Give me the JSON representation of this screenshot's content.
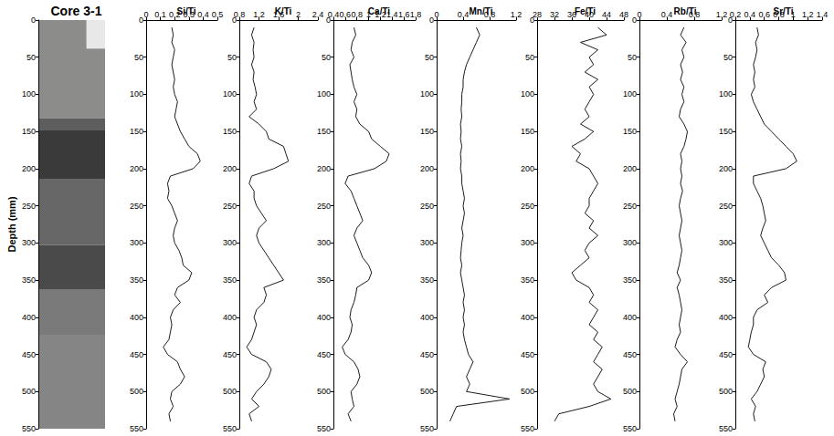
{
  "chart_data": [
    {
      "type": "core_image",
      "title": "Core 3-1",
      "y_label": "Depth (mm)",
      "ylim": [
        0,
        550
      ],
      "yticks": [
        0,
        50,
        100,
        150,
        200,
        250,
        300,
        350,
        400,
        450,
        500,
        550
      ],
      "grid": false
    },
    {
      "type": "line",
      "title": "Si/Ti",
      "color": "#000000",
      "grid": false,
      "xlim": [
        0,
        0.5
      ],
      "xticks": [
        0,
        0.1,
        0.2,
        0.3,
        0.4,
        0.5
      ],
      "ylim": [
        0,
        550
      ],
      "yticks": [
        0,
        50,
        100,
        150,
        200,
        250,
        300,
        350,
        400,
        450,
        500,
        550
      ],
      "y": [
        10,
        20,
        30,
        40,
        50,
        60,
        70,
        80,
        90,
        100,
        110,
        120,
        130,
        140,
        150,
        160,
        170,
        180,
        190,
        200,
        210,
        220,
        230,
        240,
        250,
        260,
        270,
        280,
        290,
        300,
        310,
        320,
        330,
        340,
        350,
        360,
        370,
        380,
        390,
        400,
        410,
        420,
        430,
        440,
        450,
        460,
        470,
        480,
        490,
        500,
        510,
        520,
        530,
        540
      ],
      "x": [
        0.18,
        0.19,
        0.18,
        0.2,
        0.19,
        0.18,
        0.19,
        0.2,
        0.19,
        0.2,
        0.22,
        0.21,
        0.2,
        0.22,
        0.24,
        0.27,
        0.3,
        0.36,
        0.38,
        0.33,
        0.17,
        0.15,
        0.16,
        0.15,
        0.18,
        0.2,
        0.22,
        0.2,
        0.19,
        0.2,
        0.23,
        0.25,
        0.26,
        0.32,
        0.3,
        0.22,
        0.2,
        0.24,
        0.19,
        0.17,
        0.18,
        0.17,
        0.16,
        0.12,
        0.15,
        0.22,
        0.24,
        0.27,
        0.24,
        0.18,
        0.17,
        0.19,
        0.16,
        0.17
      ]
    },
    {
      "type": "line",
      "title": "K/Ti",
      "color": "#000000",
      "grid": false,
      "xlim": [
        0.8,
        2.4
      ],
      "xticks": [
        0.8,
        1.2,
        1.6,
        2,
        2.4
      ],
      "ylim": [
        0,
        550
      ],
      "yticks": [
        0,
        50,
        100,
        150,
        200,
        250,
        300,
        350,
        400,
        450,
        500,
        550
      ],
      "y": [
        10,
        20,
        30,
        40,
        50,
        60,
        70,
        80,
        90,
        100,
        110,
        120,
        130,
        140,
        150,
        160,
        170,
        180,
        190,
        200,
        210,
        220,
        230,
        240,
        250,
        260,
        270,
        280,
        290,
        300,
        310,
        320,
        330,
        340,
        350,
        360,
        370,
        380,
        390,
        400,
        410,
        420,
        430,
        440,
        450,
        460,
        470,
        480,
        490,
        500,
        510,
        520,
        530,
        540
      ],
      "x": [
        1.1,
        1.05,
        1.1,
        1.08,
        1.1,
        1.05,
        1.1,
        1.08,
        1.12,
        1.15,
        1.1,
        1.15,
        1.0,
        1.2,
        1.35,
        1.4,
        1.7,
        1.75,
        1.8,
        1.5,
        1.05,
        1.0,
        1.1,
        1.1,
        1.15,
        1.25,
        1.35,
        1.2,
        1.15,
        1.2,
        1.3,
        1.4,
        1.5,
        1.6,
        1.7,
        1.3,
        1.35,
        1.3,
        1.15,
        1.1,
        1.15,
        1.1,
        1.05,
        0.95,
        1.05,
        1.35,
        1.45,
        1.4,
        1.3,
        1.15,
        1.05,
        1.2,
        1.0,
        1.05
      ]
    },
    {
      "type": "line",
      "title": "Ca/Ti",
      "color": "#000000",
      "grid": false,
      "xlim": [
        0.4,
        1.8
      ],
      "xticks": [
        0.4,
        0.6,
        0.8,
        1,
        1.2,
        1.4,
        1.6,
        1.8
      ],
      "ylim": [
        0,
        550
      ],
      "yticks": [
        0,
        50,
        100,
        150,
        200,
        250,
        300,
        350,
        400,
        450,
        500,
        550
      ],
      "y": [
        10,
        20,
        30,
        40,
        50,
        60,
        70,
        80,
        90,
        100,
        110,
        120,
        130,
        140,
        150,
        160,
        170,
        180,
        190,
        200,
        210,
        220,
        230,
        240,
        250,
        260,
        270,
        280,
        290,
        300,
        310,
        320,
        330,
        340,
        350,
        360,
        370,
        380,
        390,
        400,
        410,
        420,
        430,
        440,
        450,
        460,
        470,
        480,
        490,
        500,
        510,
        520,
        530,
        540
      ],
      "x": [
        0.75,
        0.78,
        0.72,
        0.7,
        0.75,
        0.68,
        0.7,
        0.72,
        0.75,
        0.8,
        0.75,
        0.8,
        0.78,
        0.85,
        1.0,
        1.05,
        1.2,
        1.35,
        1.3,
        1.1,
        0.65,
        0.6,
        0.7,
        0.75,
        0.8,
        0.85,
        0.9,
        0.8,
        0.75,
        0.8,
        0.85,
        0.9,
        1.0,
        1.05,
        1.0,
        0.8,
        0.78,
        0.75,
        0.7,
        0.68,
        0.72,
        0.7,
        0.65,
        0.55,
        0.6,
        0.75,
        0.82,
        0.85,
        0.8,
        0.7,
        0.72,
        0.75,
        0.65,
        0.7
      ]
    },
    {
      "type": "line",
      "title": "Mn/Ti",
      "color": "#000000",
      "grid": false,
      "xlim": [
        0,
        1.2
      ],
      "xticks": [
        0,
        0.4,
        0.8,
        1.2
      ],
      "ylim": [
        0,
        550
      ],
      "yticks": [
        0,
        50,
        100,
        150,
        200,
        250,
        300,
        350,
        400,
        450,
        500,
        550
      ],
      "y": [
        10,
        20,
        30,
        40,
        50,
        60,
        70,
        80,
        90,
        100,
        110,
        120,
        130,
        140,
        150,
        160,
        170,
        180,
        190,
        200,
        210,
        220,
        230,
        240,
        250,
        260,
        270,
        280,
        290,
        300,
        310,
        320,
        330,
        340,
        350,
        360,
        370,
        380,
        390,
        400,
        410,
        420,
        430,
        440,
        450,
        460,
        470,
        480,
        490,
        500,
        510,
        520,
        530,
        540
      ],
      "x": [
        0.6,
        0.65,
        0.6,
        0.55,
        0.5,
        0.45,
        0.42,
        0.4,
        0.4,
        0.38,
        0.38,
        0.37,
        0.38,
        0.36,
        0.37,
        0.36,
        0.38,
        0.36,
        0.37,
        0.36,
        0.38,
        0.38,
        0.4,
        0.42,
        0.4,
        0.42,
        0.4,
        0.38,
        0.4,
        0.38,
        0.37,
        0.36,
        0.38,
        0.36,
        0.38,
        0.4,
        0.42,
        0.4,
        0.42,
        0.4,
        0.42,
        0.4,
        0.42,
        0.45,
        0.48,
        0.55,
        0.5,
        0.45,
        0.5,
        0.45,
        1.1,
        0.3,
        0.25,
        0.2
      ]
    },
    {
      "type": "line",
      "title": "Fe/Ti",
      "color": "#000000",
      "grid": false,
      "xlim": [
        28,
        48
      ],
      "xticks": [
        28,
        32,
        36,
        40,
        44,
        48
      ],
      "ylim": [
        0,
        550
      ],
      "yticks": [
        0,
        50,
        100,
        150,
        200,
        250,
        300,
        350,
        400,
        450,
        500,
        550
      ],
      "y": [
        10,
        20,
        30,
        40,
        50,
        60,
        70,
        80,
        90,
        100,
        110,
        120,
        130,
        140,
        150,
        160,
        170,
        180,
        190,
        200,
        210,
        220,
        230,
        240,
        250,
        260,
        270,
        280,
        290,
        300,
        310,
        320,
        330,
        340,
        350,
        360,
        370,
        380,
        390,
        400,
        410,
        420,
        430,
        440,
        450,
        460,
        470,
        480,
        490,
        500,
        510,
        520,
        530,
        540
      ],
      "x": [
        42,
        44,
        38,
        42,
        40,
        41,
        39,
        42,
        40,
        41,
        40,
        39,
        40,
        38,
        41,
        39,
        36,
        38,
        37,
        40,
        41,
        42,
        41,
        40,
        40,
        39,
        41,
        40,
        42,
        40,
        39,
        40,
        38,
        36,
        37,
        40,
        41,
        40,
        42,
        41,
        40,
        42,
        41,
        43,
        42,
        41,
        43,
        42,
        41,
        42,
        45,
        40,
        33,
        32
      ]
    },
    {
      "type": "line",
      "title": "Rb/Ti",
      "color": "#000000",
      "grid": false,
      "xlim": [
        0,
        1.2
      ],
      "xticks": [
        0,
        0.4,
        0.8,
        1.2
      ],
      "ylim": [
        0,
        550
      ],
      "yticks": [
        0,
        50,
        100,
        150,
        200,
        250,
        300,
        350,
        400,
        450,
        500,
        550
      ],
      "y": [
        10,
        20,
        30,
        40,
        50,
        60,
        70,
        80,
        90,
        100,
        110,
        120,
        130,
        140,
        150,
        160,
        170,
        180,
        190,
        200,
        210,
        220,
        230,
        240,
        250,
        260,
        270,
        280,
        290,
        300,
        310,
        320,
        330,
        340,
        350,
        360,
        370,
        380,
        390,
        400,
        410,
        420,
        430,
        440,
        450,
        460,
        470,
        480,
        490,
        500,
        510,
        520,
        530,
        540
      ],
      "x": [
        0.65,
        0.6,
        0.68,
        0.62,
        0.65,
        0.6,
        0.63,
        0.6,
        0.65,
        0.62,
        0.65,
        0.6,
        0.58,
        0.65,
        0.7,
        0.68,
        0.65,
        0.6,
        0.62,
        0.6,
        0.62,
        0.6,
        0.63,
        0.6,
        0.58,
        0.6,
        0.62,
        0.6,
        0.58,
        0.6,
        0.62,
        0.6,
        0.58,
        0.55,
        0.6,
        0.55,
        0.58,
        0.6,
        0.62,
        0.6,
        0.58,
        0.6,
        0.55,
        0.52,
        0.6,
        0.7,
        0.62,
        0.6,
        0.58,
        0.55,
        0.52,
        0.55,
        0.5,
        0.52
      ]
    },
    {
      "type": "line",
      "title": "Sr/Ti",
      "color": "#000000",
      "grid": false,
      "xlim": [
        0.2,
        1.4
      ],
      "xticks": [
        0.2,
        0.4,
        0.6,
        0.8,
        1,
        1.2,
        1.4
      ],
      "ylim": [
        0,
        550
      ],
      "yticks": [
        0,
        50,
        100,
        150,
        200,
        250,
        300,
        350,
        400,
        450,
        500,
        550
      ],
      "y": [
        10,
        20,
        30,
        40,
        50,
        60,
        70,
        80,
        90,
        100,
        110,
        120,
        130,
        140,
        150,
        160,
        170,
        180,
        190,
        200,
        210,
        220,
        230,
        240,
        250,
        260,
        270,
        280,
        290,
        300,
        310,
        320,
        330,
        340,
        350,
        360,
        370,
        380,
        390,
        400,
        410,
        420,
        430,
        440,
        450,
        460,
        470,
        480,
        490,
        500,
        510,
        520,
        530,
        540
      ],
      "x": [
        0.5,
        0.52,
        0.48,
        0.5,
        0.48,
        0.45,
        0.47,
        0.45,
        0.47,
        0.42,
        0.45,
        0.5,
        0.55,
        0.6,
        0.7,
        0.8,
        0.9,
        1.0,
        1.05,
        0.9,
        0.45,
        0.45,
        0.5,
        0.55,
        0.58,
        0.6,
        0.62,
        0.58,
        0.55,
        0.6,
        0.65,
        0.7,
        0.8,
        0.88,
        0.9,
        0.7,
        0.6,
        0.65,
        0.5,
        0.45,
        0.45,
        0.42,
        0.4,
        0.38,
        0.45,
        0.62,
        0.58,
        0.6,
        0.55,
        0.5,
        0.42,
        0.48,
        0.45,
        0.47
      ]
    }
  ]
}
